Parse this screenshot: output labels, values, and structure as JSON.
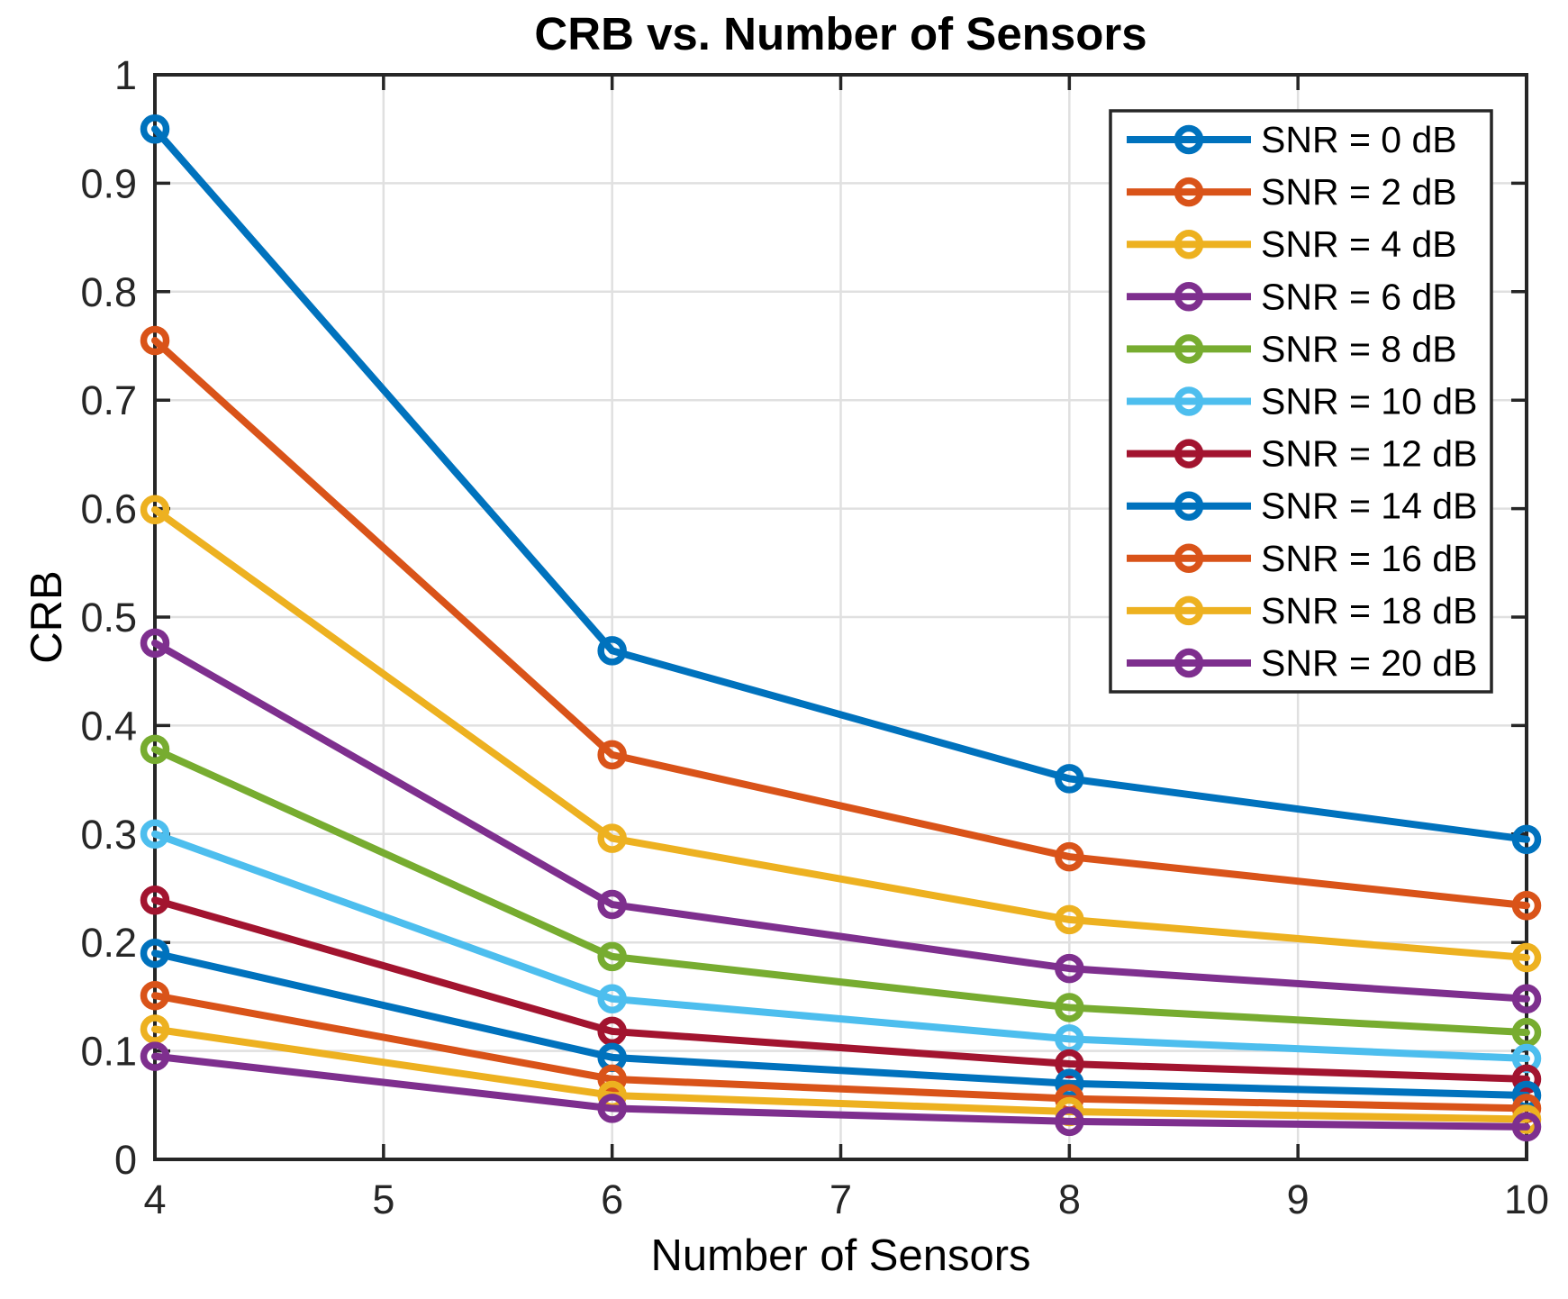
{
  "figure": {
    "title": "CRB vs. Number of Sensors",
    "xlabel": "Number of Sensors",
    "ylabel": "CRB"
  },
  "chart_data": {
    "type": "line",
    "title": "CRB vs. Number of Sensors",
    "xlabel": "Number of Sensors",
    "ylabel": "CRB",
    "x": [
      4,
      6,
      8,
      10
    ],
    "xlim": [
      4,
      10
    ],
    "ylim": [
      0,
      1
    ],
    "x_ticks": [
      4,
      5,
      6,
      7,
      8,
      9,
      10
    ],
    "x_tick_labels": [
      "4",
      "5",
      "6",
      "7",
      "8",
      "9",
      "10"
    ],
    "y_ticks": [
      0,
      0.1,
      0.2,
      0.3,
      0.4,
      0.5,
      0.6,
      0.7,
      0.8,
      0.9,
      1
    ],
    "y_tick_labels": [
      "0",
      "0.1",
      "0.2",
      "0.3",
      "0.4",
      "0.5",
      "0.6",
      "0.7",
      "0.8",
      "0.9",
      "1"
    ],
    "grid": true,
    "marker": "circle",
    "legend_position": "northeast",
    "axis_color": "#262626",
    "grid_color": "#E0E0E0",
    "background_color": "#FFFFFF",
    "series": [
      {
        "name": "SNR = 0 dB",
        "color": "#0072BD",
        "values": [
          0.95,
          0.469,
          0.351,
          0.295
        ]
      },
      {
        "name": "SNR = 2 dB",
        "color": "#D95319",
        "values": [
          0.755,
          0.373,
          0.279,
          0.234
        ]
      },
      {
        "name": "SNR = 4 dB",
        "color": "#EDB120",
        "values": [
          0.599,
          0.296,
          0.221,
          0.186
        ]
      },
      {
        "name": "SNR = 6 dB",
        "color": "#7E2F8E",
        "values": [
          0.476,
          0.235,
          0.176,
          0.148
        ]
      },
      {
        "name": "SNR = 8 dB",
        "color": "#77AC30",
        "values": [
          0.378,
          0.187,
          0.14,
          0.117
        ]
      },
      {
        "name": "SNR = 10 dB",
        "color": "#4DBEEE",
        "values": [
          0.3,
          0.148,
          0.111,
          0.093
        ]
      },
      {
        "name": "SNR = 12 dB",
        "color": "#A2142F",
        "values": [
          0.239,
          0.118,
          0.088,
          0.074
        ]
      },
      {
        "name": "SNR = 14 dB",
        "color": "#0072BD",
        "values": [
          0.19,
          0.094,
          0.07,
          0.059
        ]
      },
      {
        "name": "SNR = 16 dB",
        "color": "#D95319",
        "values": [
          0.151,
          0.074,
          0.056,
          0.047
        ]
      },
      {
        "name": "SNR = 18 dB",
        "color": "#EDB120",
        "values": [
          0.12,
          0.059,
          0.044,
          0.037
        ]
      },
      {
        "name": "SNR = 20 dB",
        "color": "#7E2F8E",
        "values": [
          0.095,
          0.047,
          0.035,
          0.03
        ]
      }
    ]
  }
}
